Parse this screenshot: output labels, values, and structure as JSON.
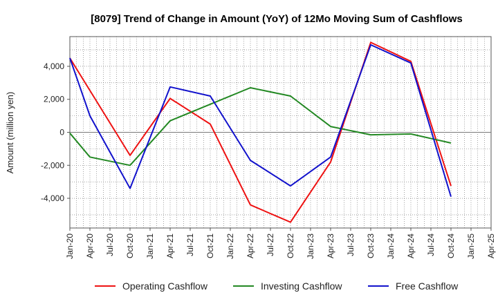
{
  "chart_data": {
    "type": "line",
    "title": "[8079]  Trend of Change in Amount (YoY) of 12Mo Moving Sum of Cashflows",
    "xlabel": "",
    "ylabel": "Amount (million yen)",
    "ylim": [
      -5800,
      5800
    ],
    "yticks": [
      -4000,
      -2000,
      0,
      2000,
      4000
    ],
    "ytick_labels": [
      "-4,000",
      "-2,000",
      "0",
      "2,000",
      "4,000"
    ],
    "categories": [
      "Jan-20",
      "Apr-20",
      "Jul-20",
      "Oct-20",
      "Jan-21",
      "Apr-21",
      "Jul-21",
      "Oct-21",
      "Jan-22",
      "Apr-22",
      "Jul-22",
      "Oct-22",
      "Jan-23",
      "Apr-23",
      "Jul-23",
      "Oct-23",
      "Jan-24",
      "Apr-24",
      "Jul-24",
      "Oct-24",
      "Jan-25",
      "Apr-25"
    ],
    "grid": true,
    "legend_position": "bottom",
    "series": [
      {
        "name": "Operating Cashflow",
        "color": "#ee1111",
        "values": [
          4500,
          null,
          null,
          -1400,
          null,
          2050,
          null,
          500,
          null,
          -4400,
          null,
          -5450,
          null,
          -1800,
          null,
          5450,
          null,
          4300,
          null,
          -3250,
          null,
          null
        ]
      },
      {
        "name": "Investing Cashflow",
        "color": "#228822",
        "values": [
          -50,
          -1500,
          null,
          -2000,
          null,
          700,
          null,
          null,
          null,
          2700,
          null,
          2200,
          null,
          350,
          null,
          -150,
          null,
          -100,
          null,
          -650,
          null,
          null
        ]
      },
      {
        "name": "Free Cashflow",
        "color": "#1111cc",
        "values": [
          4500,
          1000,
          null,
          -3400,
          null,
          2750,
          null,
          2200,
          null,
          -1700,
          null,
          -3250,
          null,
          -1500,
          null,
          5300,
          null,
          4200,
          null,
          -3900,
          null,
          null
        ]
      }
    ]
  }
}
